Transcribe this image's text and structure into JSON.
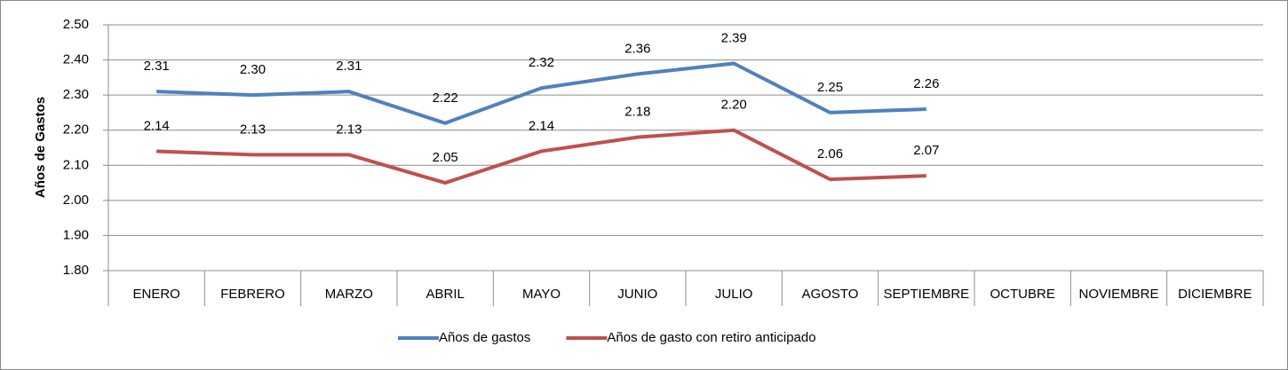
{
  "chart_data": {
    "type": "line",
    "y_label": "Años de Gastos",
    "categories": [
      "ENERO",
      "FEBRERO",
      "MARZO",
      "ABRIL",
      "MAYO",
      "JUNIO",
      "JULIO",
      "AGOSTO",
      "SEPTIEMBRE",
      "OCTUBRE",
      "NOVIEMBRE",
      "DICIEMBRE"
    ],
    "series": [
      {
        "name": "Años de gastos",
        "color": "#4f81bd",
        "values": [
          2.31,
          2.3,
          2.31,
          2.22,
          2.32,
          2.36,
          2.39,
          2.25,
          2.26,
          null,
          null,
          null
        ],
        "value_labels": [
          "2.31",
          "2.30",
          "2.31",
          "2.22",
          "2.32",
          "2.36",
          "2.39",
          "2.25",
          "2.26",
          null,
          null,
          null
        ]
      },
      {
        "name": "Años de gasto con retiro anticipado",
        "color": "#c0504d",
        "values": [
          2.14,
          2.13,
          2.13,
          2.05,
          2.14,
          2.18,
          2.2,
          2.06,
          2.07,
          null,
          null,
          null
        ],
        "value_labels": [
          "2.14",
          "2.13",
          "2.13",
          "2.05",
          "2.14",
          "2.18",
          "2.20",
          "2.06",
          "2.07",
          null,
          null,
          null
        ]
      }
    ],
    "ylim": [
      1.8,
      2.5
    ],
    "yticks": [
      {
        "value": 1.8,
        "label": "1.80"
      },
      {
        "value": 1.9,
        "label": "1.90"
      },
      {
        "value": 2.0,
        "label": "2.00"
      },
      {
        "value": 2.1,
        "label": "2.10"
      },
      {
        "value": 2.2,
        "label": "2.20"
      },
      {
        "value": 2.3,
        "label": "2.30"
      },
      {
        "value": 2.4,
        "label": "2.40"
      },
      {
        "value": 2.5,
        "label": "2.50"
      }
    ],
    "grid": true,
    "legend": "bottom"
  }
}
